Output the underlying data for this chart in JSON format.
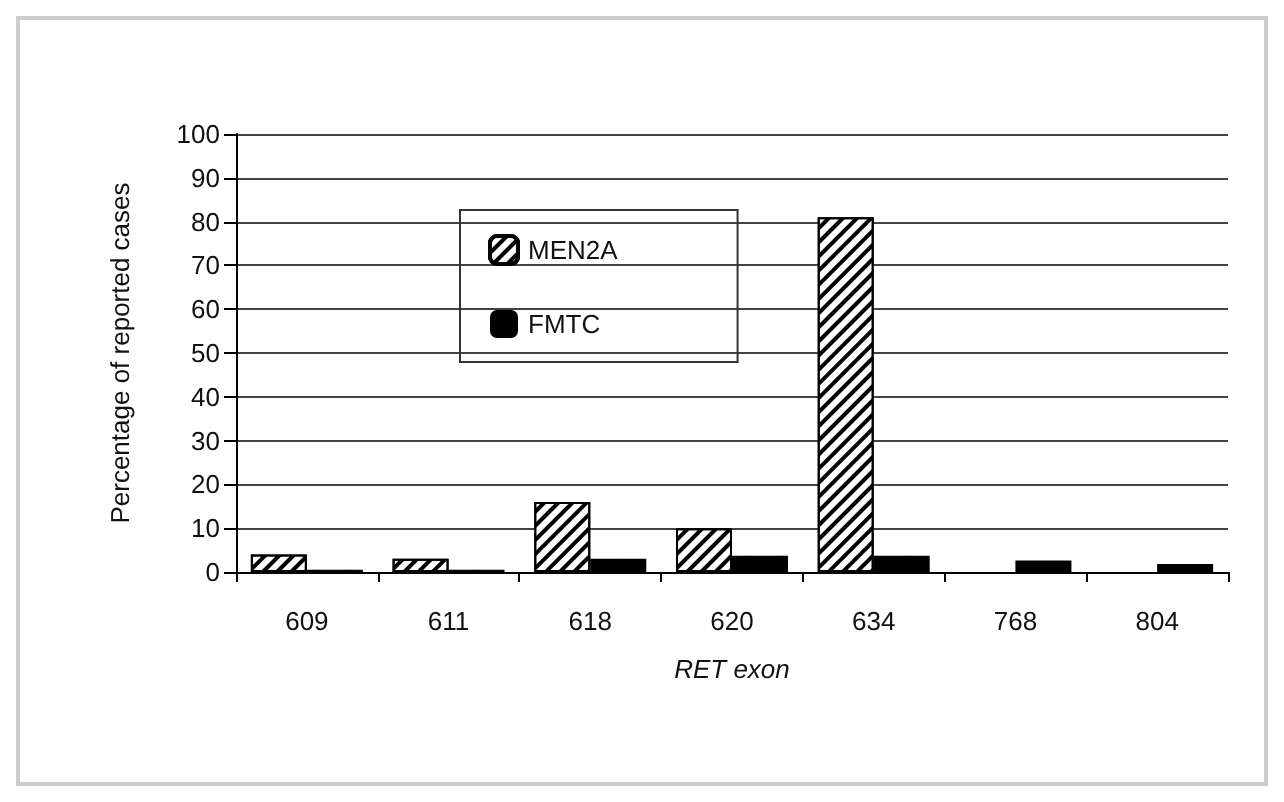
{
  "chart_data": {
    "type": "bar",
    "xlabel": "RET exon",
    "ylabel": "Percentage of reported cases",
    "categories": [
      "609",
      "611",
      "618",
      "620",
      "634",
      "768",
      "804"
    ],
    "series": [
      {
        "name": "MEN2A",
        "color": "#ffffff",
        "values": [
          4,
          3,
          16,
          10,
          81,
          null,
          null
        ]
      },
      {
        "name": "FMTC",
        "color": "#000000",
        "values": [
          0.5,
          0.5,
          3,
          3.7,
          3.7,
          2.6,
          1.8
        ]
      }
    ],
    "ylim": [
      0,
      100
    ],
    "yticks": [
      0,
      10,
      20,
      30,
      40,
      50,
      60,
      70,
      80,
      90,
      100
    ],
    "grid": "y",
    "legend": "top left"
  }
}
